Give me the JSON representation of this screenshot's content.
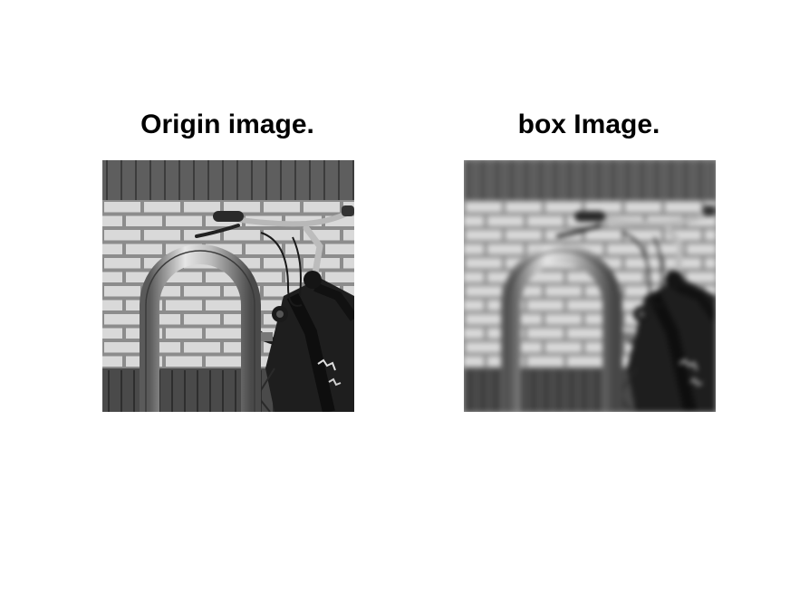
{
  "panels": [
    {
      "title": "Origin image.",
      "image": "grayscale photo of a bicycle locked to a metal bike rack in front of a brick wall"
    },
    {
      "title": "box Image.",
      "image": "same photo after box-filter blurring"
    }
  ],
  "colors": {
    "background": "#ffffff",
    "text": "#000000"
  }
}
